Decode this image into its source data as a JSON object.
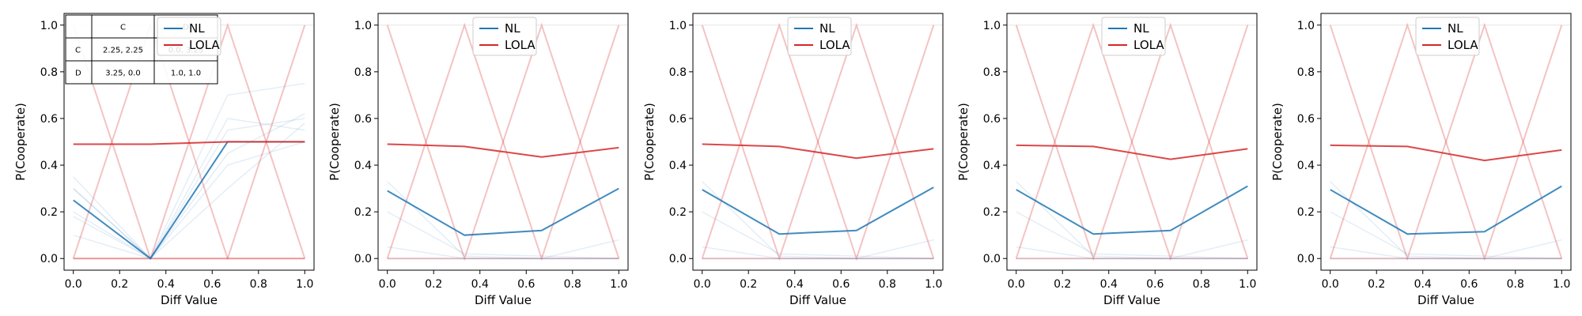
{
  "chart_data": [
    {
      "type": "line",
      "xlabel": "Diff Value",
      "ylabel": "P(Cooperate)",
      "xlim": [
        -0.04,
        1.04
      ],
      "ylim": [
        -0.05,
        1.05
      ],
      "xticks": [
        "0.0",
        "0.2",
        "0.4",
        "0.6",
        "0.8",
        "1.0"
      ],
      "yticks": [
        "0.0",
        "0.2",
        "0.4",
        "0.6",
        "0.8",
        "1.0"
      ],
      "x": [
        0,
        0.3333,
        0.6667,
        1.0
      ],
      "legend": {
        "placement": "upper-center",
        "entries": [
          "NL",
          "LOLA"
        ]
      },
      "series": [
        {
          "name": "NL",
          "color": "#1f77b4",
          "values": [
            0.25,
            0.0,
            0.5,
            0.5
          ]
        },
        {
          "name": "LOLA",
          "color": "#d62728",
          "values": [
            0.49,
            0.49,
            0.5,
            0.5
          ]
        }
      ],
      "background_nl": [
        [
          0.35,
          0.0,
          0.55,
          0.6
        ],
        [
          0.3,
          0.0,
          0.6,
          0.55
        ],
        [
          0.2,
          0.0,
          0.45,
          0.62
        ],
        [
          0.18,
          0.0,
          0.7,
          0.75
        ],
        [
          0.1,
          0.0,
          0.4,
          0.5
        ],
        [
          0.3,
          0.0,
          0.3,
          0.58
        ]
      ],
      "background_lola": [
        [
          0.0,
          1.0,
          0.0,
          0.0
        ],
        [
          1.0,
          0.0,
          0.0,
          1.0
        ],
        [
          0.0,
          0.0,
          1.0,
          0.0
        ],
        [
          0.0,
          0.0,
          0.0,
          0.0
        ]
      ],
      "payoff_table": {
        "header": [
          "",
          "C",
          "D"
        ],
        "rows": [
          [
            "C",
            "2.25, 2.25",
            "0.0, 3.25"
          ],
          [
            "D",
            "3.25, 0.0",
            "1.0, 1.0"
          ]
        ]
      }
    },
    {
      "type": "line",
      "xlabel": "Diff Value",
      "ylabel": "P(Cooperate)",
      "xlim": [
        -0.04,
        1.04
      ],
      "ylim": [
        -0.05,
        1.05
      ],
      "xticks": [
        "0.0",
        "0.2",
        "0.4",
        "0.6",
        "0.8",
        "1.0"
      ],
      "yticks": [
        "0.0",
        "0.2",
        "0.4",
        "0.6",
        "0.8",
        "1.0"
      ],
      "x": [
        0,
        0.3333,
        0.6667,
        1.0
      ],
      "legend": {
        "placement": "upper-center",
        "entries": [
          "NL",
          "LOLA"
        ]
      },
      "series": [
        {
          "name": "NL",
          "color": "#1f77b4",
          "values": [
            0.29,
            0.1,
            0.12,
            0.3
          ]
        },
        {
          "name": "LOLA",
          "color": "#d62728",
          "values": [
            0.49,
            0.48,
            0.435,
            0.475
          ]
        }
      ],
      "background_nl": [
        [
          0.33,
          0.01,
          0.0,
          0.0
        ],
        [
          0.2,
          0.02,
          0.01,
          0.0
        ],
        [
          0.05,
          0.0,
          0.0,
          0.0
        ],
        [
          0.0,
          0.0,
          0.0,
          0.08
        ]
      ],
      "background_lola": [
        [
          1.0,
          0.0,
          1.0,
          0.0
        ],
        [
          0.0,
          1.0,
          0.0,
          1.0
        ],
        [
          0.0,
          0.0,
          0.0,
          0.0
        ]
      ]
    },
    {
      "type": "line",
      "xlabel": "Diff Value",
      "ylabel": "P(Cooperate)",
      "xlim": [
        -0.04,
        1.04
      ],
      "ylim": [
        -0.05,
        1.05
      ],
      "xticks": [
        "0.0",
        "0.2",
        "0.4",
        "0.6",
        "0.8",
        "1.0"
      ],
      "yticks": [
        "0.0",
        "0.2",
        "0.4",
        "0.6",
        "0.8",
        "1.0"
      ],
      "x": [
        0,
        0.3333,
        0.6667,
        1.0
      ],
      "legend": {
        "placement": "upper-center",
        "entries": [
          "NL",
          "LOLA"
        ]
      },
      "series": [
        {
          "name": "NL",
          "color": "#1f77b4",
          "values": [
            0.295,
            0.105,
            0.12,
            0.305
          ]
        },
        {
          "name": "LOLA",
          "color": "#d62728",
          "values": [
            0.49,
            0.48,
            0.43,
            0.47
          ]
        }
      ],
      "background_nl": [
        [
          0.33,
          0.01,
          0.0,
          0.0
        ],
        [
          0.2,
          0.02,
          0.01,
          0.0
        ],
        [
          0.05,
          0.0,
          0.0,
          0.0
        ],
        [
          0.0,
          0.0,
          0.0,
          0.08
        ]
      ],
      "background_lola": [
        [
          1.0,
          0.0,
          1.0,
          0.0
        ],
        [
          0.0,
          1.0,
          0.0,
          1.0
        ],
        [
          0.0,
          0.0,
          0.0,
          0.0
        ]
      ]
    },
    {
      "type": "line",
      "xlabel": "Diff Value",
      "ylabel": "P(Cooperate)",
      "xlim": [
        -0.04,
        1.04
      ],
      "ylim": [
        -0.05,
        1.05
      ],
      "xticks": [
        "0.0",
        "0.2",
        "0.4",
        "0.6",
        "0.8",
        "1.0"
      ],
      "yticks": [
        "0.0",
        "0.2",
        "0.4",
        "0.6",
        "0.8",
        "1.0"
      ],
      "x": [
        0,
        0.3333,
        0.6667,
        1.0
      ],
      "legend": {
        "placement": "upper-center",
        "entries": [
          "NL",
          "LOLA"
        ]
      },
      "series": [
        {
          "name": "NL",
          "color": "#1f77b4",
          "values": [
            0.295,
            0.105,
            0.12,
            0.31
          ]
        },
        {
          "name": "LOLA",
          "color": "#d62728",
          "values": [
            0.485,
            0.48,
            0.425,
            0.47
          ]
        }
      ],
      "background_nl": [
        [
          0.33,
          0.01,
          0.0,
          0.0
        ],
        [
          0.2,
          0.02,
          0.01,
          0.0
        ],
        [
          0.05,
          0.0,
          0.0,
          0.0
        ],
        [
          0.0,
          0.0,
          0.0,
          0.08
        ]
      ],
      "background_lola": [
        [
          1.0,
          0.0,
          1.0,
          0.0
        ],
        [
          0.0,
          1.0,
          0.0,
          1.0
        ],
        [
          0.0,
          0.0,
          0.0,
          0.0
        ]
      ]
    },
    {
      "type": "line",
      "xlabel": "Diff Value",
      "ylabel": "P(Cooperate)",
      "xlim": [
        -0.04,
        1.04
      ],
      "ylim": [
        -0.05,
        1.05
      ],
      "xticks": [
        "0.0",
        "0.2",
        "0.4",
        "0.6",
        "0.8",
        "1.0"
      ],
      "yticks": [
        "0.0",
        "0.2",
        "0.4",
        "0.6",
        "0.8",
        "1.0"
      ],
      "x": [
        0,
        0.3333,
        0.6667,
        1.0
      ],
      "legend": {
        "placement": "upper-center",
        "entries": [
          "NL",
          "LOLA"
        ]
      },
      "series": [
        {
          "name": "NL",
          "color": "#1f77b4",
          "values": [
            0.295,
            0.105,
            0.115,
            0.31
          ]
        },
        {
          "name": "LOLA",
          "color": "#d62728",
          "values": [
            0.485,
            0.48,
            0.42,
            0.465
          ]
        }
      ],
      "background_nl": [
        [
          0.33,
          0.01,
          0.0,
          0.0
        ],
        [
          0.2,
          0.02,
          0.01,
          0.0
        ],
        [
          0.05,
          0.0,
          0.0,
          0.0
        ],
        [
          0.0,
          0.0,
          0.0,
          0.08
        ]
      ],
      "background_lola": [
        [
          1.0,
          0.0,
          1.0,
          0.0
        ],
        [
          0.0,
          1.0,
          0.0,
          1.0
        ],
        [
          0.0,
          0.0,
          0.0,
          0.0
        ]
      ]
    }
  ]
}
